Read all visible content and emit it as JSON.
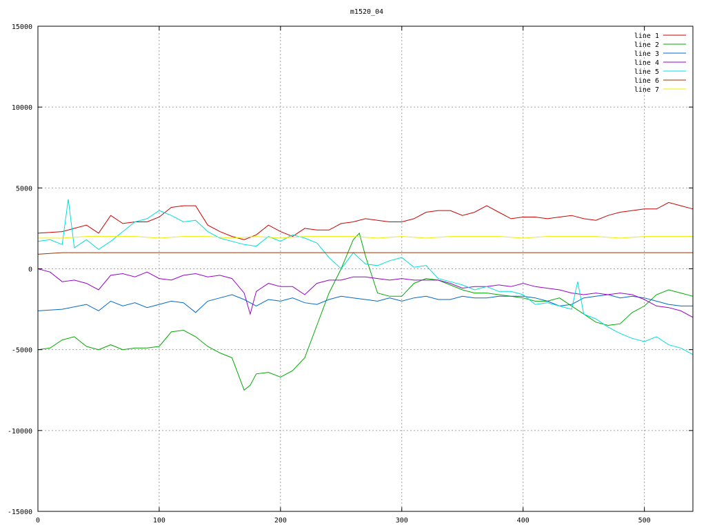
{
  "chart_data": {
    "type": "line",
    "title": "m1520_04",
    "xlabel": "",
    "ylabel": "",
    "xlim": [
      0,
      540
    ],
    "ylim": [
      -15000,
      15000
    ],
    "x_ticks": [
      0,
      100,
      200,
      300,
      400,
      500
    ],
    "y_ticks": [
      -15000,
      -10000,
      -5000,
      0,
      5000,
      10000,
      15000
    ],
    "x_tick_labels": [
      "0",
      "100",
      "200",
      "300",
      "400",
      "500"
    ],
    "y_tick_labels": [
      "-15000",
      "-10000",
      "-5000",
      "0",
      "5000",
      "10000",
      "15000"
    ],
    "grid": true,
    "legend_position": "top-right",
    "series": [
      {
        "name": "line 1",
        "color": "#cc0000",
        "x": [
          0,
          20,
          40,
          50,
          60,
          70,
          80,
          90,
          100,
          110,
          120,
          130,
          140,
          150,
          160,
          170,
          180,
          190,
          200,
          210,
          220,
          230,
          240,
          250,
          260,
          270,
          280,
          290,
          300,
          310,
          320,
          330,
          340,
          350,
          360,
          370,
          380,
          390,
          400,
          410,
          420,
          430,
          440,
          450,
          460,
          470,
          480,
          490,
          500,
          510,
          520,
          530,
          540
        ],
        "values": [
          2200,
          2300,
          2700,
          2200,
          3300,
          2800,
          2900,
          2900,
          3200,
          3800,
          3900,
          3900,
          2700,
          2300,
          2000,
          1800,
          2100,
          2700,
          2300,
          2000,
          2500,
          2400,
          2400,
          2800,
          2900,
          3100,
          3000,
          2900,
          2900,
          3100,
          3500,
          3600,
          3600,
          3300,
          3500,
          3900,
          3500,
          3100,
          3200,
          3200,
          3100,
          3200,
          3300,
          3100,
          3000,
          3300,
          3500,
          3600,
          3700,
          3700,
          4100,
          3900,
          3700
        ]
      },
      {
        "name": "line 2",
        "color": "#00aa00",
        "x": [
          0,
          10,
          20,
          30,
          40,
          50,
          60,
          70,
          80,
          90,
          100,
          110,
          120,
          130,
          140,
          150,
          160,
          170,
          175,
          180,
          190,
          200,
          210,
          220,
          230,
          240,
          250,
          260,
          265,
          270,
          280,
          290,
          300,
          310,
          320,
          330,
          340,
          350,
          360,
          370,
          380,
          390,
          400,
          410,
          420,
          430,
          440,
          450,
          460,
          470,
          480,
          490,
          500,
          510,
          520,
          530,
          540
        ],
        "values": [
          -5000,
          -4900,
          -4400,
          -4200,
          -4800,
          -5000,
          -4700,
          -5000,
          -4900,
          -4900,
          -4800,
          -3900,
          -3800,
          -4200,
          -4800,
          -5200,
          -5500,
          -7500,
          -7200,
          -6500,
          -6400,
          -6700,
          -6300,
          -5500,
          -3500,
          -1500,
          0,
          1800,
          2200,
          800,
          -1500,
          -1700,
          -1700,
          -900,
          -600,
          -700,
          -1000,
          -1300,
          -1500,
          -1500,
          -1600,
          -1700,
          -1800,
          -2000,
          -2000,
          -1800,
          -2300,
          -2800,
          -3300,
          -3500,
          -3400,
          -2700,
          -2300,
          -1600,
          -1300,
          -1500,
          -1700
        ]
      },
      {
        "name": "line 3",
        "color": "#0066cc",
        "x": [
          0,
          20,
          40,
          50,
          60,
          70,
          80,
          90,
          100,
          110,
          120,
          130,
          140,
          150,
          160,
          170,
          180,
          190,
          200,
          210,
          220,
          230,
          240,
          250,
          260,
          270,
          280,
          290,
          300,
          310,
          320,
          330,
          340,
          350,
          360,
          370,
          380,
          390,
          400,
          410,
          420,
          430,
          440,
          450,
          460,
          470,
          480,
          490,
          500,
          510,
          520,
          530,
          540
        ],
        "values": [
          -2600,
          -2500,
          -2200,
          -2600,
          -2000,
          -2300,
          -2100,
          -2400,
          -2200,
          -2000,
          -2100,
          -2700,
          -2000,
          -1800,
          -1600,
          -1900,
          -2300,
          -1900,
          -2000,
          -1800,
          -2100,
          -2200,
          -1900,
          -1700,
          -1800,
          -1900,
          -2000,
          -1800,
          -2000,
          -1800,
          -1700,
          -1900,
          -1900,
          -1700,
          -1800,
          -1800,
          -1700,
          -1700,
          -1700,
          -1800,
          -2000,
          -2300,
          -2200,
          -1800,
          -1700,
          -1600,
          -1800,
          -1700,
          -1800,
          -2000,
          -2200,
          -2300,
          -2300
        ]
      },
      {
        "name": "line 4",
        "color": "#9900cc",
        "x": [
          0,
          10,
          20,
          30,
          40,
          50,
          60,
          70,
          80,
          90,
          100,
          110,
          120,
          130,
          140,
          150,
          160,
          170,
          175,
          180,
          190,
          200,
          210,
          220,
          230,
          240,
          250,
          260,
          270,
          280,
          290,
          300,
          310,
          320,
          330,
          340,
          350,
          360,
          370,
          380,
          390,
          400,
          410,
          420,
          430,
          440,
          450,
          460,
          470,
          480,
          490,
          500,
          510,
          520,
          530,
          540
        ],
        "values": [
          0,
          -200,
          -800,
          -700,
          -900,
          -1300,
          -400,
          -300,
          -500,
          -200,
          -600,
          -700,
          -400,
          -300,
          -500,
          -400,
          -600,
          -1500,
          -2800,
          -1400,
          -900,
          -1100,
          -1100,
          -1600,
          -900,
          -700,
          -700,
          -500,
          -500,
          -600,
          -700,
          -600,
          -700,
          -700,
          -700,
          -900,
          -1200,
          -1100,
          -1100,
          -1000,
          -1100,
          -900,
          -1100,
          -1200,
          -1300,
          -1500,
          -1600,
          -1500,
          -1600,
          -1500,
          -1600,
          -1900,
          -2300,
          -2400,
          -2600,
          -3000
        ]
      },
      {
        "name": "line 5",
        "color": "#00dddd",
        "x": [
          0,
          10,
          20,
          25,
          30,
          40,
          50,
          60,
          70,
          80,
          90,
          100,
          110,
          120,
          130,
          140,
          150,
          160,
          170,
          180,
          190,
          200,
          210,
          220,
          230,
          240,
          250,
          260,
          270,
          280,
          290,
          300,
          310,
          320,
          330,
          340,
          350,
          360,
          370,
          380,
          390,
          400,
          410,
          420,
          430,
          440,
          445,
          450,
          460,
          470,
          480,
          490,
          500,
          510,
          520,
          530,
          540
        ],
        "values": [
          1700,
          1800,
          1500,
          4300,
          1300,
          1800,
          1200,
          1700,
          2300,
          2900,
          3100,
          3600,
          3300,
          2900,
          3000,
          2300,
          1900,
          1700,
          1500,
          1400,
          2000,
          1700,
          2100,
          1900,
          1600,
          700,
          0,
          1000,
          300,
          200,
          500,
          700,
          100,
          200,
          -600,
          -800,
          -1000,
          -1300,
          -1100,
          -1400,
          -1400,
          -1600,
          -2200,
          -2100,
          -2300,
          -2500,
          -800,
          -2800,
          -3100,
          -3600,
          -4000,
          -4300,
          -4500,
          -4200,
          -4700,
          -4900,
          -5300
        ]
      },
      {
        "name": "line 6",
        "color": "#993300",
        "x": [
          0,
          20,
          40,
          60,
          80,
          100,
          120,
          140,
          160,
          180,
          200,
          220,
          240,
          260,
          280,
          300,
          320,
          340,
          360,
          380,
          400,
          420,
          440,
          460,
          480,
          500,
          520,
          540
        ],
        "values": [
          900,
          1000,
          1000,
          1000,
          1000,
          1000,
          1000,
          1000,
          1000,
          1000,
          1000,
          1000,
          1000,
          1000,
          1000,
          1000,
          1000,
          1000,
          1000,
          1000,
          1000,
          1000,
          1000,
          1000,
          1000,
          1000,
          1000,
          1000
        ]
      },
      {
        "name": "line 7",
        "color": "#eeee00",
        "x": [
          0,
          20,
          40,
          60,
          80,
          100,
          120,
          140,
          160,
          180,
          200,
          220,
          240,
          260,
          280,
          300,
          320,
          340,
          360,
          380,
          400,
          420,
          440,
          460,
          480,
          500,
          520,
          540
        ],
        "values": [
          1900,
          1900,
          2000,
          2000,
          2000,
          1900,
          2000,
          2000,
          1900,
          2000,
          1900,
          2000,
          2000,
          2000,
          1900,
          2000,
          1900,
          2000,
          2000,
          2000,
          1900,
          2000,
          2000,
          2000,
          1900,
          2000,
          2000,
          2000
        ]
      }
    ]
  }
}
